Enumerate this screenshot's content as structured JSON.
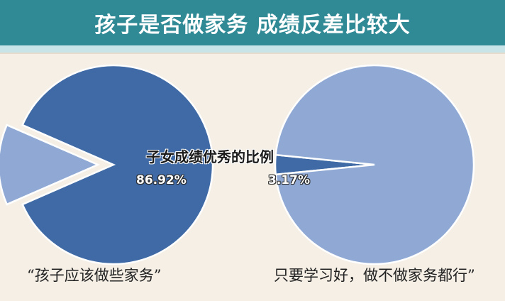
{
  "header": {
    "title": "孩子是否做家务 成绩反差比较大"
  },
  "colors": {
    "header_bg": "#2f8a96",
    "dark_blue": "#3f6aa5",
    "light_blue": "#8fa9d4",
    "background": "#f5efe6"
  },
  "chart_data": {
    "type": "pie",
    "title": "子女成绩优秀的比例",
    "pies": [
      {
        "label": "“孩子应该做些家务”",
        "value_label": "86.92%",
        "slices": [
          {
            "value": 86.92,
            "color": "#3f6aa5"
          },
          {
            "value": 13.08,
            "color": "#8fa9d4"
          }
        ]
      },
      {
        "label": "只要学习好，做不做家务都行”",
        "value_label": "3.17%",
        "slices": [
          {
            "value": 3.17,
            "color": "#3f6aa5"
          },
          {
            "value": 96.83,
            "color": "#8fa9d4"
          }
        ]
      }
    ]
  }
}
